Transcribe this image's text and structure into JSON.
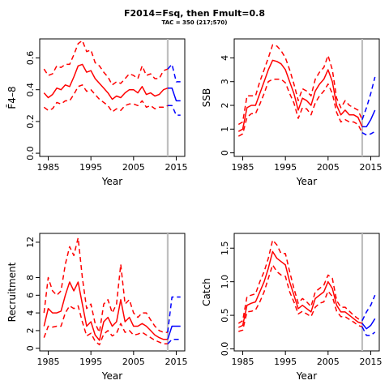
{
  "figure": {
    "title": "F2014=Fsq, then Fmult=0.8",
    "subtitle": "TAC = 350 (217;570)"
  },
  "colors": {
    "historic": "#ff0000",
    "forecast": "#0000ff",
    "marker": "#bfbfbf"
  },
  "chart_data": [
    {
      "type": "line",
      "xlabel": "Year",
      "ylabel": "F̄4–8",
      "xlim": [
        1983,
        2017
      ],
      "ylim": [
        -0.02,
        0.72
      ],
      "xticks": [
        1985,
        1995,
        2005,
        2015
      ],
      "yticks": [
        0.0,
        0.2,
        0.4,
        0.6
      ],
      "ytick_labels": [
        "0.0",
        "0.2",
        "0.4",
        "0.6"
      ],
      "marker_year": 2013,
      "historic": {
        "x": [
          1984,
          1985,
          1986,
          1987,
          1988,
          1989,
          1990,
          1991,
          1992,
          1993,
          1994,
          1995,
          1996,
          1997,
          1998,
          1999,
          2000,
          2001,
          2002,
          2003,
          2004,
          2005,
          2006,
          2007,
          2008,
          2009,
          2010,
          2011,
          2012,
          2013
        ],
        "mid": [
          0.38,
          0.35,
          0.37,
          0.41,
          0.4,
          0.43,
          0.42,
          0.48,
          0.55,
          0.56,
          0.51,
          0.52,
          0.47,
          0.44,
          0.41,
          0.38,
          0.34,
          0.36,
          0.35,
          0.38,
          0.4,
          0.4,
          0.38,
          0.42,
          0.37,
          0.38,
          0.36,
          0.37,
          0.4,
          0.41
        ],
        "upper": [
          0.53,
          0.49,
          0.5,
          0.55,
          0.54,
          0.56,
          0.56,
          0.62,
          0.69,
          0.71,
          0.64,
          0.65,
          0.57,
          0.55,
          0.51,
          0.48,
          0.43,
          0.45,
          0.44,
          0.47,
          0.5,
          0.49,
          0.47,
          0.55,
          0.49,
          0.5,
          0.47,
          0.47,
          0.52,
          0.53
        ],
        "lower": [
          0.29,
          0.27,
          0.28,
          0.32,
          0.31,
          0.33,
          0.33,
          0.37,
          0.42,
          0.43,
          0.39,
          0.4,
          0.37,
          0.34,
          0.32,
          0.3,
          0.26,
          0.28,
          0.27,
          0.3,
          0.31,
          0.31,
          0.3,
          0.33,
          0.29,
          0.3,
          0.28,
          0.29,
          0.29,
          0.3
        ]
      },
      "forecast": {
        "x": [
          2013,
          2014,
          2015,
          2016
        ],
        "mid": [
          0.41,
          0.41,
          0.33,
          0.33
        ],
        "upper": [
          0.53,
          0.56,
          0.45,
          0.45
        ],
        "lower": [
          0.3,
          0.3,
          0.24,
          0.24
        ]
      }
    },
    {
      "type": "line",
      "xlabel": "Year",
      "ylabel": "SSB",
      "xlim": [
        1983,
        2017
      ],
      "ylim": [
        -0.15,
        4.8
      ],
      "xticks": [
        1985,
        1995,
        2005,
        2015
      ],
      "yticks": [
        0,
        1,
        2,
        3,
        4
      ],
      "ytick_labels": [
        "0",
        "1",
        "2",
        "3",
        "4"
      ],
      "marker_year": 2013,
      "historic": {
        "x": [
          1984,
          1985,
          1986,
          1987,
          1988,
          1989,
          1990,
          1991,
          1992,
          1993,
          1994,
          1995,
          1996,
          1997,
          1998,
          1999,
          2000,
          2001,
          2002,
          2003,
          2004,
          2005,
          2006,
          2007,
          2008,
          2009,
          2010,
          2011,
          2012,
          2013
        ],
        "mid": [
          0.9,
          1.0,
          1.9,
          2.0,
          2.0,
          2.5,
          3.0,
          3.5,
          3.9,
          3.85,
          3.75,
          3.5,
          3.0,
          2.5,
          1.8,
          2.3,
          2.2,
          2.0,
          2.6,
          2.9,
          3.1,
          3.5,
          3.0,
          2.0,
          1.6,
          1.8,
          1.6,
          1.6,
          1.5,
          1.1
        ],
        "upper": [
          1.2,
          1.3,
          2.4,
          2.4,
          2.4,
          3.0,
          3.5,
          4.0,
          4.55,
          4.5,
          4.3,
          4.0,
          3.5,
          2.9,
          2.2,
          2.7,
          2.6,
          2.4,
          3.1,
          3.4,
          3.6,
          4.1,
          3.5,
          2.3,
          1.9,
          2.2,
          2.0,
          1.9,
          1.8,
          1.4
        ],
        "lower": [
          0.7,
          0.8,
          1.5,
          1.65,
          1.65,
          2.05,
          2.5,
          3.0,
          3.1,
          3.1,
          3.1,
          2.95,
          2.5,
          2.1,
          1.45,
          1.9,
          1.85,
          1.6,
          2.1,
          2.4,
          2.6,
          2.9,
          2.5,
          1.7,
          1.3,
          1.4,
          1.3,
          1.3,
          1.2,
          0.85
        ]
      },
      "forecast": {
        "x": [
          2013,
          2014,
          2015,
          2016
        ],
        "mid": [
          1.1,
          1.1,
          1.4,
          1.8
        ],
        "upper": [
          1.4,
          1.9,
          2.5,
          3.2
        ],
        "lower": [
          0.85,
          0.75,
          0.8,
          0.9
        ]
      }
    },
    {
      "type": "line",
      "xlabel": "Year",
      "ylabel": "Recruitment",
      "xlim": [
        1983,
        2017
      ],
      "ylim": [
        -0.3,
        13
      ],
      "xticks": [
        1985,
        1995,
        2005,
        2015
      ],
      "yticks": [
        0,
        2,
        4,
        6,
        8,
        12
      ],
      "ytick_labels": [
        "0",
        "2",
        "4",
        "6",
        "8",
        "12"
      ],
      "marker_year": 2013,
      "historic": {
        "x": [
          1984,
          1985,
          1986,
          1987,
          1988,
          1989,
          1990,
          1991,
          1992,
          1993,
          1994,
          1995,
          1996,
          1997,
          1998,
          1999,
          2000,
          2001,
          2002,
          2003,
          2004,
          2005,
          2006,
          2007,
          2008,
          2009,
          2010,
          2011,
          2012,
          2013
        ],
        "mid": [
          2.5,
          4.5,
          4.0,
          4.0,
          4.2,
          6.0,
          7.5,
          6.5,
          7.5,
          5.0,
          2.5,
          3.0,
          1.5,
          0.9,
          3.0,
          3.5,
          2.5,
          3.0,
          5.5,
          3.0,
          3.5,
          2.5,
          2.5,
          2.8,
          2.5,
          2.0,
          1.5,
          1.2,
          1.0,
          1.0
        ],
        "upper": [
          4.0,
          8.0,
          6.5,
          6.0,
          6.5,
          9.5,
          11.5,
          10.5,
          12.5,
          8.0,
          4.5,
          5.0,
          2.8,
          1.8,
          5.0,
          5.5,
          4.0,
          5.0,
          9.5,
          5.0,
          5.5,
          4.0,
          3.5,
          4.0,
          4.0,
          3.2,
          2.5,
          2.0,
          1.8,
          1.8
        ],
        "lower": [
          1.2,
          2.5,
          2.4,
          2.5,
          2.5,
          4.0,
          4.8,
          4.5,
          4.8,
          3.0,
          1.4,
          1.7,
          0.8,
          0.4,
          1.6,
          2.0,
          1.4,
          1.7,
          2.8,
          1.8,
          2.0,
          1.5,
          1.6,
          1.8,
          1.5,
          1.2,
          0.9,
          0.7,
          0.5,
          0.5
        ]
      },
      "forecast": {
        "x": [
          2013,
          2014,
          2015,
          2016
        ],
        "mid": [
          1.0,
          2.5,
          2.5,
          2.5
        ],
        "upper": [
          1.8,
          5.8,
          5.8,
          5.8
        ],
        "lower": [
          0.5,
          1.0,
          1.0,
          1.0
        ]
      }
    },
    {
      "type": "line",
      "xlabel": "Year",
      "ylabel": "Catch",
      "xlim": [
        1983,
        2017
      ],
      "ylim": [
        -0.03,
        1.72
      ],
      "xticks": [
        1985,
        1995,
        2005,
        2015
      ],
      "yticks": [
        0.0,
        0.5,
        1.0,
        1.5
      ],
      "ytick_labels": [
        "0.0",
        "0.5",
        "1.0",
        "1.5"
      ],
      "marker_year": 2013,
      "historic": {
        "x": [
          1984,
          1985,
          1986,
          1987,
          1988,
          1989,
          1990,
          1991,
          1992,
          1993,
          1994,
          1995,
          1996,
          1997,
          1998,
          1999,
          2000,
          2001,
          2002,
          2003,
          2004,
          2005,
          2006,
          2007,
          2008,
          2009,
          2010,
          2011,
          2012,
          2013
        ],
        "mid": [
          0.32,
          0.35,
          0.65,
          0.68,
          0.7,
          0.85,
          1.0,
          1.2,
          1.45,
          1.35,
          1.3,
          1.25,
          1.0,
          0.8,
          0.6,
          0.65,
          0.6,
          0.55,
          0.75,
          0.8,
          0.85,
          1.0,
          0.9,
          0.65,
          0.55,
          0.55,
          0.5,
          0.45,
          0.4,
          0.38
        ],
        "upper": [
          0.38,
          0.42,
          0.78,
          0.8,
          0.82,
          1.0,
          1.15,
          1.35,
          1.62,
          1.55,
          1.42,
          1.42,
          1.15,
          0.9,
          0.68,
          0.75,
          0.7,
          0.63,
          0.85,
          0.9,
          0.95,
          1.1,
          1.05,
          0.72,
          0.62,
          0.62,
          0.56,
          0.5,
          0.45,
          0.42
        ],
        "lower": [
          0.26,
          0.28,
          0.55,
          0.56,
          0.58,
          0.7,
          0.85,
          1.05,
          1.25,
          1.15,
          1.1,
          1.08,
          0.85,
          0.7,
          0.52,
          0.56,
          0.52,
          0.48,
          0.62,
          0.68,
          0.7,
          0.86,
          0.78,
          0.56,
          0.48,
          0.48,
          0.44,
          0.4,
          0.35,
          0.33
        ]
      },
      "forecast": {
        "x": [
          2013,
          2014,
          2015,
          2016
        ],
        "mid": [
          0.38,
          0.3,
          0.35,
          0.45
        ],
        "upper": [
          0.42,
          0.55,
          0.65,
          0.8
        ],
        "lower": [
          0.33,
          0.2,
          0.2,
          0.25
        ]
      }
    }
  ]
}
